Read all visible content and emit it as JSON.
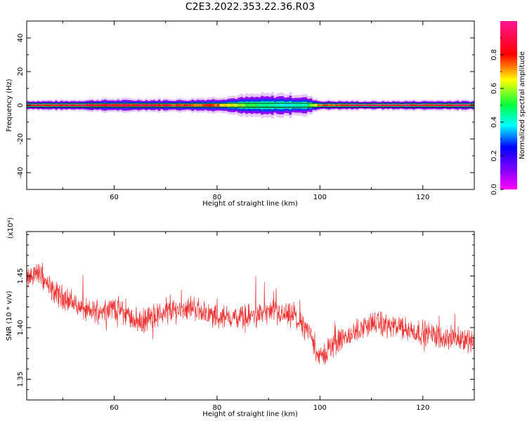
{
  "title": "C2E3.2022.353.22.36.R03",
  "chart_data": [
    {
      "type": "heatmap",
      "xlabel": "Height of straight line (km)",
      "ylabel": "Frequency (Hz)",
      "xlim": [
        43,
        130
      ],
      "ylim": [
        -50,
        50
      ],
      "xticks": [
        60,
        80,
        100,
        120
      ],
      "yticks": [
        -40,
        -20,
        0,
        20,
        40
      ],
      "ytick_labels": [
        "-40",
        "-20",
        "0",
        "20",
        "40"
      ],
      "colorbar": {
        "label": "Normalized spectral amplitude",
        "range": [
          0,
          1
        ],
        "ticks": [
          0.0,
          0.2,
          0.4,
          0.6,
          0.8
        ],
        "tick_labels": [
          "0.0",
          "0.2",
          "0.4",
          "0.6",
          "0.8"
        ],
        "colors": [
          "#ff00ff",
          "#7f00ff",
          "#0000ff",
          "#00ffff",
          "#00ff00",
          "#ffff00",
          "#ff0000",
          "#ff1493"
        ]
      },
      "ridge": {
        "freq_center_hz": 0,
        "profile": [
          {
            "x": 43,
            "halfwidth": 2.0,
            "peak": 0.9
          },
          {
            "x": 50,
            "halfwidth": 2.0,
            "peak": 0.92
          },
          {
            "x": 58,
            "halfwidth": 2.5,
            "peak": 0.92
          },
          {
            "x": 66,
            "halfwidth": 2.5,
            "peak": 0.9
          },
          {
            "x": 74,
            "halfwidth": 2.5,
            "peak": 0.88
          },
          {
            "x": 80,
            "halfwidth": 3.0,
            "peak": 0.8
          },
          {
            "x": 86,
            "halfwidth": 4.0,
            "peak": 0.55
          },
          {
            "x": 92,
            "halfwidth": 4.5,
            "peak": 0.45
          },
          {
            "x": 97,
            "halfwidth": 4.0,
            "peak": 0.45
          },
          {
            "x": 100,
            "halfwidth": 2.0,
            "peak": 0.85
          },
          {
            "x": 110,
            "halfwidth": 1.8,
            "peak": 0.95
          },
          {
            "x": 120,
            "halfwidth": 2.0,
            "peak": 0.95
          },
          {
            "x": 130,
            "halfwidth": 2.0,
            "peak": 0.95
          }
        ]
      }
    },
    {
      "type": "line",
      "xlabel": "Height of straight line (km)",
      "ylabel": "SNR (10 * v/v)",
      "y_multiplier": "(x10⁴)",
      "xlim": [
        43,
        130
      ],
      "ylim": [
        13300,
        14930
      ],
      "xticks": [
        60,
        80,
        100,
        120
      ],
      "yticks": [
        13500,
        14000,
        14500
      ],
      "ytick_labels": [
        "1.35",
        "1.40",
        "1.45"
      ],
      "color": "#ee3333",
      "series": [
        {
          "x": [
            43,
            45,
            48,
            50,
            55,
            60,
            65,
            70,
            75,
            80,
            85,
            90,
            95,
            98,
            100,
            103,
            105,
            110,
            115,
            120,
            125,
            130
          ],
          "y": [
            14450,
            14550,
            14350,
            14300,
            14150,
            14200,
            14050,
            14150,
            14200,
            14100,
            14100,
            14150,
            14100,
            13950,
            13700,
            13850,
            13900,
            14050,
            14000,
            13950,
            13900,
            13880
          ]
        }
      ]
    }
  ]
}
